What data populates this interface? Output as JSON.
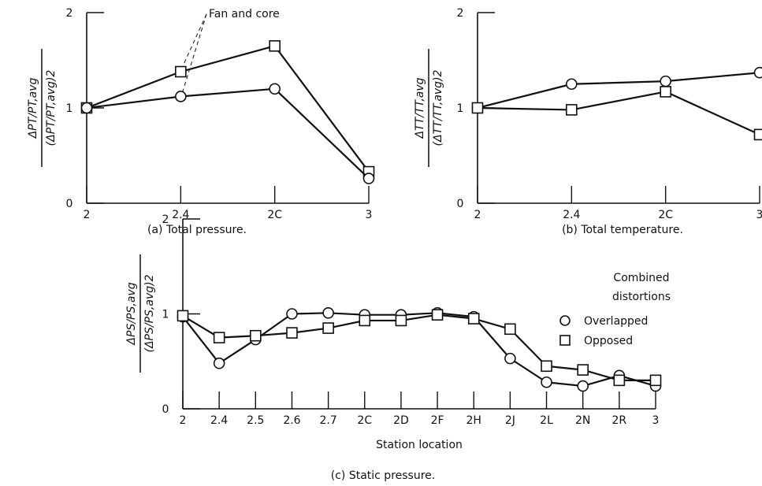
{
  "chart_data": [
    {
      "id": "a",
      "type": "line",
      "caption": "(a) Total pressure.",
      "ylabel_numerator": "ΔPT/PT,avg",
      "ylabel_denominator": "(ΔPT/PT,avg)2",
      "categories": [
        "2",
        "2.4",
        "2C",
        "3"
      ],
      "yticks": [
        "0",
        "1",
        "2"
      ],
      "ylim": [
        0,
        2
      ],
      "annotation": "Fan and core",
      "series": [
        {
          "marker": "square",
          "values": [
            1.0,
            1.38,
            1.65,
            0.33
          ]
        },
        {
          "marker": "circle",
          "values": [
            1.0,
            1.12,
            1.2,
            0.26
          ]
        }
      ]
    },
    {
      "id": "b",
      "type": "line",
      "caption": "(b) Total temperature.",
      "ylabel_numerator": "ΔTT/TT,avg",
      "ylabel_denominator": "(ΔTT/TT,avg)2",
      "categories": [
        "2",
        "2.4",
        "2C",
        "3"
      ],
      "yticks": [
        "0",
        "1",
        "2"
      ],
      "ylim": [
        0,
        2
      ],
      "series": [
        {
          "marker": "circle",
          "values": [
            1.0,
            1.25,
            1.28,
            1.37
          ]
        },
        {
          "marker": "square",
          "values": [
            1.0,
            0.98,
            1.17,
            0.72
          ]
        }
      ]
    },
    {
      "id": "c",
      "type": "line",
      "caption": "(c) Static pressure.",
      "xlabel": "Station location",
      "ylabel_numerator": "ΔPS/PS,avg",
      "ylabel_denominator": "(ΔPS/PS,avg)2",
      "categories": [
        "2",
        "2.4",
        "2.5",
        "2.6",
        "2.7",
        "2C",
        "2D",
        "2F",
        "2H",
        "2J",
        "2L",
        "2N",
        "2R",
        "3"
      ],
      "yticks": [
        "0",
        "1",
        "2"
      ],
      "ylim": [
        0,
        2
      ],
      "legend_title": [
        "Combined",
        "distortions"
      ],
      "series": [
        {
          "name": "Overlapped",
          "marker": "circle",
          "values": [
            0.97,
            0.48,
            0.73,
            1.0,
            1.01,
            0.99,
            0.99,
            1.01,
            0.97,
            0.53,
            0.28,
            0.24,
            0.35,
            0.24
          ]
        },
        {
          "name": "Opposed",
          "marker": "square",
          "values": [
            0.98,
            0.75,
            0.77,
            0.8,
            0.85,
            0.93,
            0.93,
            0.99,
            0.95,
            0.84,
            0.45,
            0.41,
            0.3,
            0.3
          ]
        }
      ]
    }
  ]
}
